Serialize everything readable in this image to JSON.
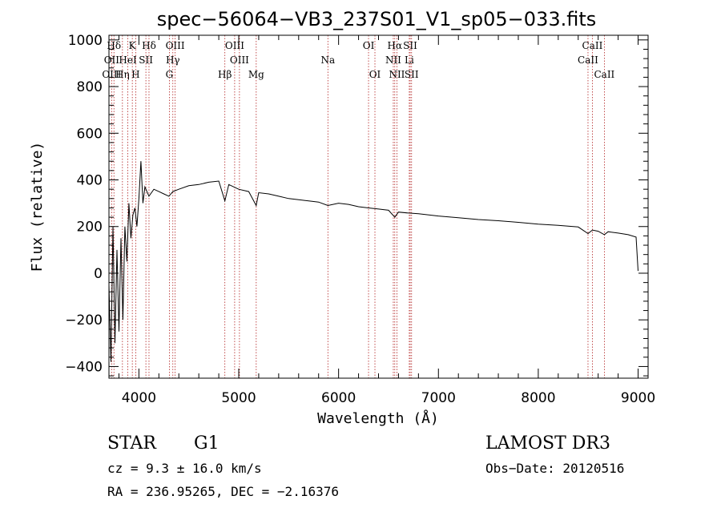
{
  "chart_data": {
    "type": "line",
    "title": "spec−56064−VB3_237S01_V1_sp05−033.fits",
    "xlabel": "Wavelength (Å)",
    "ylabel": "Flux (relative)",
    "xlim": [
      3700,
      9100
    ],
    "ylim": [
      -450,
      1020
    ],
    "x_ticks": [
      4000,
      5000,
      6000,
      7000,
      8000,
      9000
    ],
    "x_tick_labels": [
      "4000",
      "5000",
      "6000",
      "7000",
      "8000",
      "9000"
    ],
    "y_ticks": [
      -400,
      -200,
      0,
      200,
      400,
      600,
      800,
      1000
    ],
    "y_tick_labels": [
      "−400",
      "−200",
      "0",
      "200",
      "400",
      "600",
      "800",
      "1000"
    ],
    "series": [
      {
        "name": "spectrum",
        "x": [
          3700,
          3720,
          3740,
          3760,
          3780,
          3800,
          3820,
          3840,
          3860,
          3880,
          3900,
          3920,
          3940,
          3960,
          3980,
          4000,
          4020,
          4040,
          4060,
          4080,
          4100,
          4150,
          4200,
          4250,
          4300,
          4340,
          4400,
          4500,
          4600,
          4700,
          4800,
          4861,
          4900,
          5000,
          5100,
          5175,
          5200,
          5300,
          5400,
          5500,
          5600,
          5700,
          5800,
          5893,
          6000,
          6100,
          6200,
          6300,
          6400,
          6500,
          6563,
          6600,
          6700,
          6800,
          7000,
          7200,
          7400,
          7600,
          7800,
          8000,
          8200,
          8400,
          8498,
          8542,
          8600,
          8662,
          8700,
          8800,
          8900,
          8980,
          9000
        ],
        "y": [
          -50,
          -380,
          200,
          -300,
          100,
          -250,
          150,
          -200,
          200,
          50,
          300,
          150,
          250,
          280,
          200,
          320,
          480,
          300,
          370,
          350,
          330,
          360,
          350,
          340,
          330,
          350,
          360,
          375,
          380,
          390,
          395,
          310,
          380,
          360,
          350,
          290,
          345,
          340,
          330,
          320,
          315,
          310,
          305,
          290,
          300,
          295,
          285,
          280,
          275,
          270,
          240,
          262,
          258,
          255,
          245,
          238,
          230,
          225,
          218,
          210,
          205,
          198,
          170,
          185,
          180,
          165,
          178,
          172,
          165,
          155,
          10
        ]
      }
    ],
    "spectral_lines": [
      {
        "label": "Hδ",
        "wl": 3750,
        "row": 0
      },
      {
        "label": "K",
        "wl": 3934,
        "row": 0
      },
      {
        "label": "Hδ",
        "wl": 4101,
        "row": 0
      },
      {
        "label": "OIII",
        "wl": 4363,
        "row": 0
      },
      {
        "label": "OIII",
        "wl": 4959,
        "row": 0
      },
      {
        "label": "OI",
        "wl": 6300,
        "row": 0
      },
      {
        "label": "Hα",
        "wl": 6563,
        "row": 0
      },
      {
        "label": "SII",
        "wl": 6717,
        "row": 0
      },
      {
        "label": "CaII",
        "wl": 8542,
        "row": 0
      },
      {
        "label": "OII",
        "wl": 3727,
        "row": 1
      },
      {
        "label": "HeI",
        "wl": 3889,
        "row": 1
      },
      {
        "label": "SII",
        "wl": 4070,
        "row": 1
      },
      {
        "label": "Hγ",
        "wl": 4340,
        "row": 1
      },
      {
        "label": "OIII",
        "wl": 5007,
        "row": 1
      },
      {
        "label": "Na",
        "wl": 5893,
        "row": 1
      },
      {
        "label": "NII",
        "wl": 6548,
        "row": 1
      },
      {
        "label": "Li",
        "wl": 6708,
        "row": 1
      },
      {
        "label": "CaII",
        "wl": 8498,
        "row": 1
      },
      {
        "label": "OIII",
        "wl": 3727,
        "row": 2
      },
      {
        "label": "Hη",
        "wl": 3835,
        "row": 2
      },
      {
        "label": "H",
        "wl": 3968,
        "row": 2
      },
      {
        "label": "G",
        "wl": 4305,
        "row": 2
      },
      {
        "label": "Hβ",
        "wl": 4861,
        "row": 2
      },
      {
        "label": "Mg",
        "wl": 5175,
        "row": 2
      },
      {
        "label": "OI",
        "wl": 6364,
        "row": 2
      },
      {
        "label": "NII",
        "wl": 6584,
        "row": 2
      },
      {
        "label": "SII",
        "wl": 6731,
        "row": 2
      },
      {
        "label": "CaII",
        "wl": 8662,
        "row": 2
      }
    ],
    "marker_lines": [
      3727,
      3750,
      3835,
      3889,
      3934,
      3968,
      4070,
      4101,
      4305,
      4340,
      4363,
      4861,
      4959,
      5007,
      5175,
      5893,
      6300,
      6364,
      6548,
      6563,
      6584,
      6708,
      6717,
      6731,
      8498,
      8542,
      8662
    ]
  },
  "info": {
    "class": "STAR",
    "subclass": "G1",
    "survey": "LAMOST DR3",
    "cz": "cz = 9.3 ± 16.0 km/s",
    "obs_date": "Obs−Date: 20120516",
    "coords": "RA = 236.95265, DEC =  −2.16376"
  }
}
